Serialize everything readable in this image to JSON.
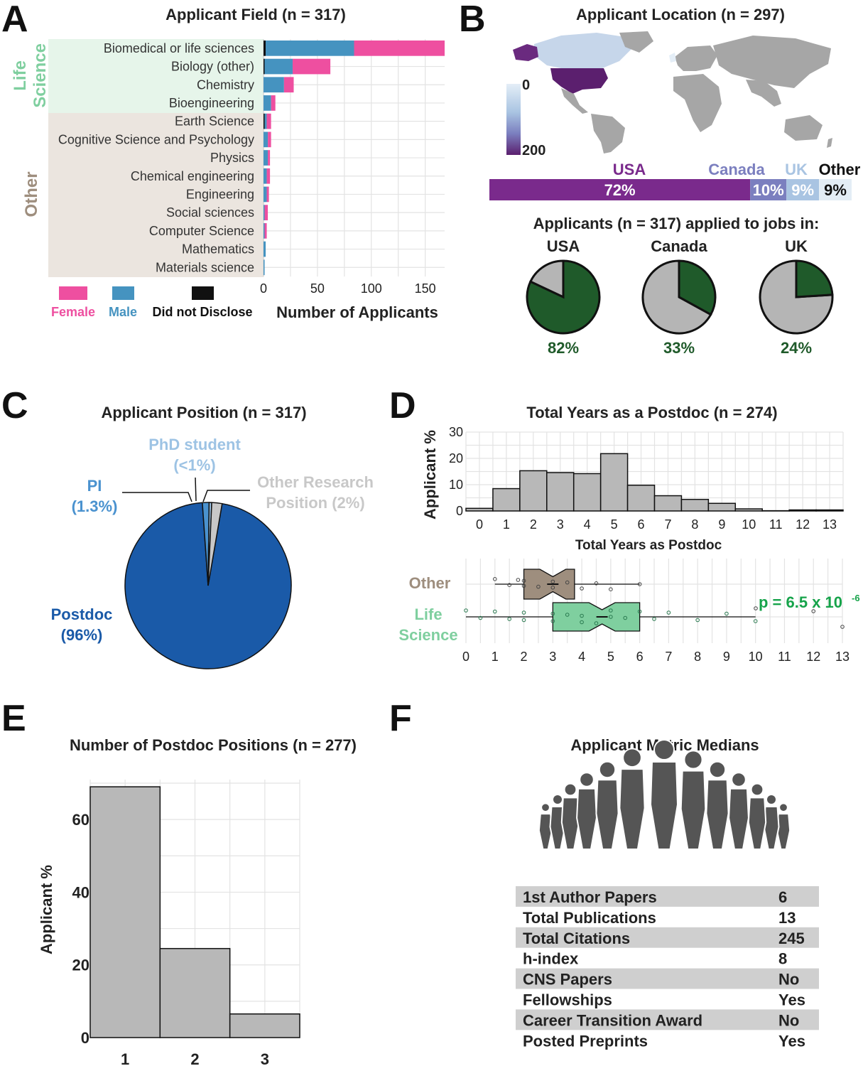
{
  "panels": {
    "A": "A",
    "B": "B",
    "C": "C",
    "D": "D",
    "E": "E",
    "F": "F"
  },
  "colors": {
    "female": "#ee4fa0",
    "male": "#4593c0",
    "undisclosed": "#111111",
    "life_science": "#7fcf9f",
    "life_science_bg": "#e6f5ea",
    "other": "#9e8e7e",
    "other_bg": "#ebe5df",
    "usa": "#7a2a8c",
    "canada": "#7b7fbf",
    "uk": "#a9c4e2",
    "other_loc": "#e3edf5",
    "pie_green": "#1f5a2a",
    "pie_gray": "#b5b5b5",
    "postdoc": "#1a5aa8",
    "pi": "#4a92cf",
    "phd": "#9dc3e4",
    "other_pos": "#c8c8c8",
    "hist": "#b8b8b8",
    "p_green": "#16a34a"
  },
  "chart_data": [
    {
      "panel": "A",
      "type": "bar",
      "orientation": "horizontal",
      "stacked": true,
      "title": "Applicant Field (n = 317)",
      "xlabel": "Number of Applicants",
      "xlim": [
        0,
        168
      ],
      "xticks": [
        "0",
        "50",
        "100",
        "150"
      ],
      "xtick_values": [
        0,
        50,
        100,
        150
      ],
      "groups": [
        {
          "label": "Life\nScience",
          "label_lines": [
            "Life",
            "Science"
          ],
          "members": [
            "Biomedical or life sciences",
            "Biology (other)",
            "Chemistry",
            "Bioengineering"
          ]
        },
        {
          "label": "Other",
          "label_lines": [
            "Other"
          ],
          "members": [
            "Earth Science",
            "Cognitive Science and Psychology",
            "Physics",
            "Chemical engineering",
            "Engineering",
            "Social sciences",
            "Computer Science",
            "Mathematics",
            "Materials science"
          ]
        }
      ],
      "categories": [
        "Biomedical or life sciences",
        "Biology (other)",
        "Chemistry",
        "Bioengineering",
        "Earth Science",
        "Cognitive Science and Psychology",
        "Physics",
        "Chemical engineering",
        "Engineering",
        "Social sciences",
        "Computer Science",
        "Mathematics",
        "Materials science"
      ],
      "series": [
        {
          "name": "Did not Disclose",
          "values": [
            2,
            1,
            0,
            0,
            1,
            0,
            0,
            0,
            0,
            0,
            0,
            0,
            0
          ]
        },
        {
          "name": "Male",
          "values": [
            82,
            26,
            19,
            7,
            2,
            4,
            4,
            3,
            3,
            1,
            1,
            2,
            1
          ]
        },
        {
          "name": "Female",
          "values": [
            84,
            35,
            9,
            4,
            4,
            3,
            2,
            3,
            2,
            3,
            2,
            0,
            0
          ]
        }
      ],
      "legend": [
        "Female",
        "Male",
        "Did not Disclose"
      ]
    },
    {
      "panel": "B",
      "type": "map",
      "title": "Applicant Location (n = 297)",
      "colorbar": {
        "min_label": "0",
        "max_label": "200",
        "min": 0,
        "max": 200
      },
      "country_counts": {
        "USA": 214,
        "Canada": 30,
        "UK": 27,
        "Other": 26
      },
      "share_bar": [
        {
          "name": "USA",
          "pct_label": "72%",
          "value": 72
        },
        {
          "name": "Canada",
          "pct_label": "10%",
          "value": 10
        },
        {
          "name": "UK",
          "pct_label": "9%",
          "value": 9
        },
        {
          "name": "Other",
          "pct_label": "9%",
          "value": 9
        }
      ],
      "pies_title": "Applicants (n = 317) applied to jobs in:",
      "pies": [
        {
          "name": "USA",
          "value": 82,
          "label": "82%"
        },
        {
          "name": "Canada",
          "value": 33,
          "label": "33%"
        },
        {
          "name": "UK",
          "value": 24,
          "label": "24%"
        }
      ]
    },
    {
      "panel": "C",
      "type": "pie",
      "title": "Applicant Position (n = 317)",
      "slices": [
        {
          "name": "Postdoc",
          "value": 96,
          "label_lines": [
            "Postdoc",
            "(96%)"
          ]
        },
        {
          "name": "PI",
          "value": 1.3,
          "label_lines": [
            "PI",
            "(1.3%)"
          ]
        },
        {
          "name": "PhD student",
          "value": 0.5,
          "label_lines": [
            "PhD student",
            "(<1%)"
          ]
        },
        {
          "name": "Other Research Position",
          "value": 2,
          "label_lines": [
            "Other Research",
            "Position (2%)"
          ]
        }
      ]
    },
    {
      "panel": "D",
      "type": "bar",
      "subtype": "histogram",
      "title": "Total Years as a Postdoc (n = 274)",
      "xlabel": "Total Years as Postdoc",
      "ylabel": "Applicant %",
      "bin_width": 1,
      "x": [
        0,
        1,
        2,
        3,
        4,
        5,
        6,
        7,
        8,
        9,
        10,
        11,
        12,
        13
      ],
      "values": [
        1,
        8.5,
        15.3,
        14.6,
        14.2,
        21.8,
        9.8,
        5.8,
        4.4,
        2.9,
        0.8,
        0.1,
        0.4,
        0.4
      ],
      "xlim": [
        -0.5,
        13.5
      ],
      "ylim": [
        0,
        30
      ],
      "yticks": [
        "0",
        "10",
        "20",
        "30"
      ],
      "ytick_values": [
        0,
        10,
        20,
        30
      ],
      "xticks": [
        "0",
        "1",
        "2",
        "3",
        "4",
        "5",
        "6",
        "7",
        "8",
        "9",
        "10",
        "11",
        "12",
        "13"
      ],
      "boxplot": {
        "type": "box",
        "groups": [
          {
            "name": "Other",
            "q1": 2,
            "median": 3,
            "q3": 3.75,
            "notch": [
              2.55,
              3.45
            ],
            "whisker_low": 1,
            "whisker_high": 6
          },
          {
            "name": "Life Science",
            "label_lines": [
              "Life",
              "Science"
            ],
            "q1": 3,
            "median": 4.7,
            "q3": 6,
            "notch": [
              4.25,
              5.15
            ],
            "whisker_low": 0,
            "whisker_high": 10
          }
        ],
        "xlim": [
          0,
          13
        ],
        "xticks": [
          "0",
          "1",
          "2",
          "3",
          "4",
          "5",
          "6",
          "7",
          "8",
          "9",
          "10",
          "11",
          "12",
          "13"
        ],
        "p_value_text": "p = 6.5 x 10",
        "p_value_exponent": "-6"
      }
    },
    {
      "panel": "E",
      "type": "bar",
      "title": "Number of Postdoc Positions (n = 277)",
      "ylabel": "Applicant %",
      "categories": [
        "1",
        "2",
        "3"
      ],
      "values": [
        69,
        24.5,
        6.5
      ],
      "ylim": [
        0,
        70
      ],
      "yticks": [
        "0",
        "20",
        "40",
        "60"
      ],
      "ytick_values": [
        0,
        20,
        40,
        60
      ]
    },
    {
      "panel": "F",
      "type": "table",
      "title": "Applicant Metric Medians",
      "rows": [
        {
          "metric": "1st Author Papers",
          "value": "6"
        },
        {
          "metric": "Total Publications",
          "value": "13"
        },
        {
          "metric": "Total Citations",
          "value": "245"
        },
        {
          "metric": "h-index",
          "value": "8"
        },
        {
          "metric": "CNS Papers",
          "value": "No"
        },
        {
          "metric": "Fellowships",
          "value": "Yes"
        },
        {
          "metric": "Career Transition Award",
          "value": "No"
        },
        {
          "metric": "Posted Preprints",
          "value": "Yes"
        }
      ]
    }
  ]
}
